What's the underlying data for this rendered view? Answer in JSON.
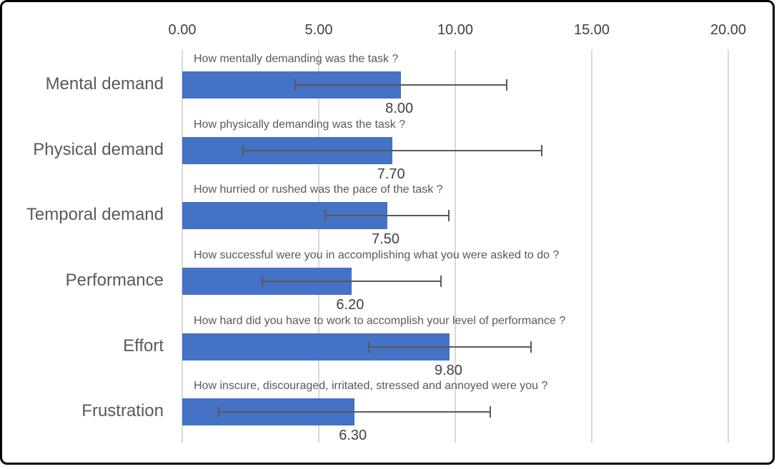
{
  "chart_data": {
    "type": "bar",
    "orientation": "horizontal",
    "title": "",
    "xlabel": "",
    "ylabel": "",
    "xlim": [
      0,
      20
    ],
    "axis_position": "top",
    "grid": "vertical",
    "x_ticks": [
      {
        "value": 0,
        "label": "0.00"
      },
      {
        "value": 5,
        "label": "5.00"
      },
      {
        "value": 10,
        "label": "10.00"
      },
      {
        "value": 15,
        "label": "15.00"
      },
      {
        "value": 20,
        "label": "20.00"
      }
    ],
    "rows": [
      {
        "category": "Mental demand",
        "question": "How mentally demanding was the task ?",
        "value": 8.0,
        "value_label": "8.00",
        "error_low": 4.1,
        "error_high": 11.9
      },
      {
        "category": "Physical demand",
        "question": "How physically demanding was the task ?",
        "value": 7.7,
        "value_label": "7.70",
        "error_low": 2.2,
        "error_high": 13.2
      },
      {
        "category": "Temporal demand",
        "question": "How hurried or rushed was the pace of the task ?",
        "value": 7.5,
        "value_label": "7.50",
        "error_low": 5.2,
        "error_high": 9.8
      },
      {
        "category": "Performance",
        "question": "How successful were you in accomplishing what you were asked to do ?",
        "value": 6.2,
        "value_label": "6.20",
        "error_low": 2.9,
        "error_high": 9.5
      },
      {
        "category": "Effort",
        "question": "How hard did you have to work to accomplish your level of performance ?",
        "value": 9.8,
        "value_label": "9.80",
        "error_low": 6.8,
        "error_high": 12.8
      },
      {
        "category": "Frustration",
        "question": "How inscure, discouraged, irritated, stressed and annoyed were you ?",
        "value": 6.3,
        "value_label": "6.30",
        "error_low": 1.3,
        "error_high": 11.3
      }
    ],
    "colors": {
      "bar": "#4472C4",
      "error_bar": "#595959",
      "gridline": "#D9D9D9",
      "tick_text": "#404040",
      "value_text": "#404040",
      "label_text": "#595959"
    }
  }
}
